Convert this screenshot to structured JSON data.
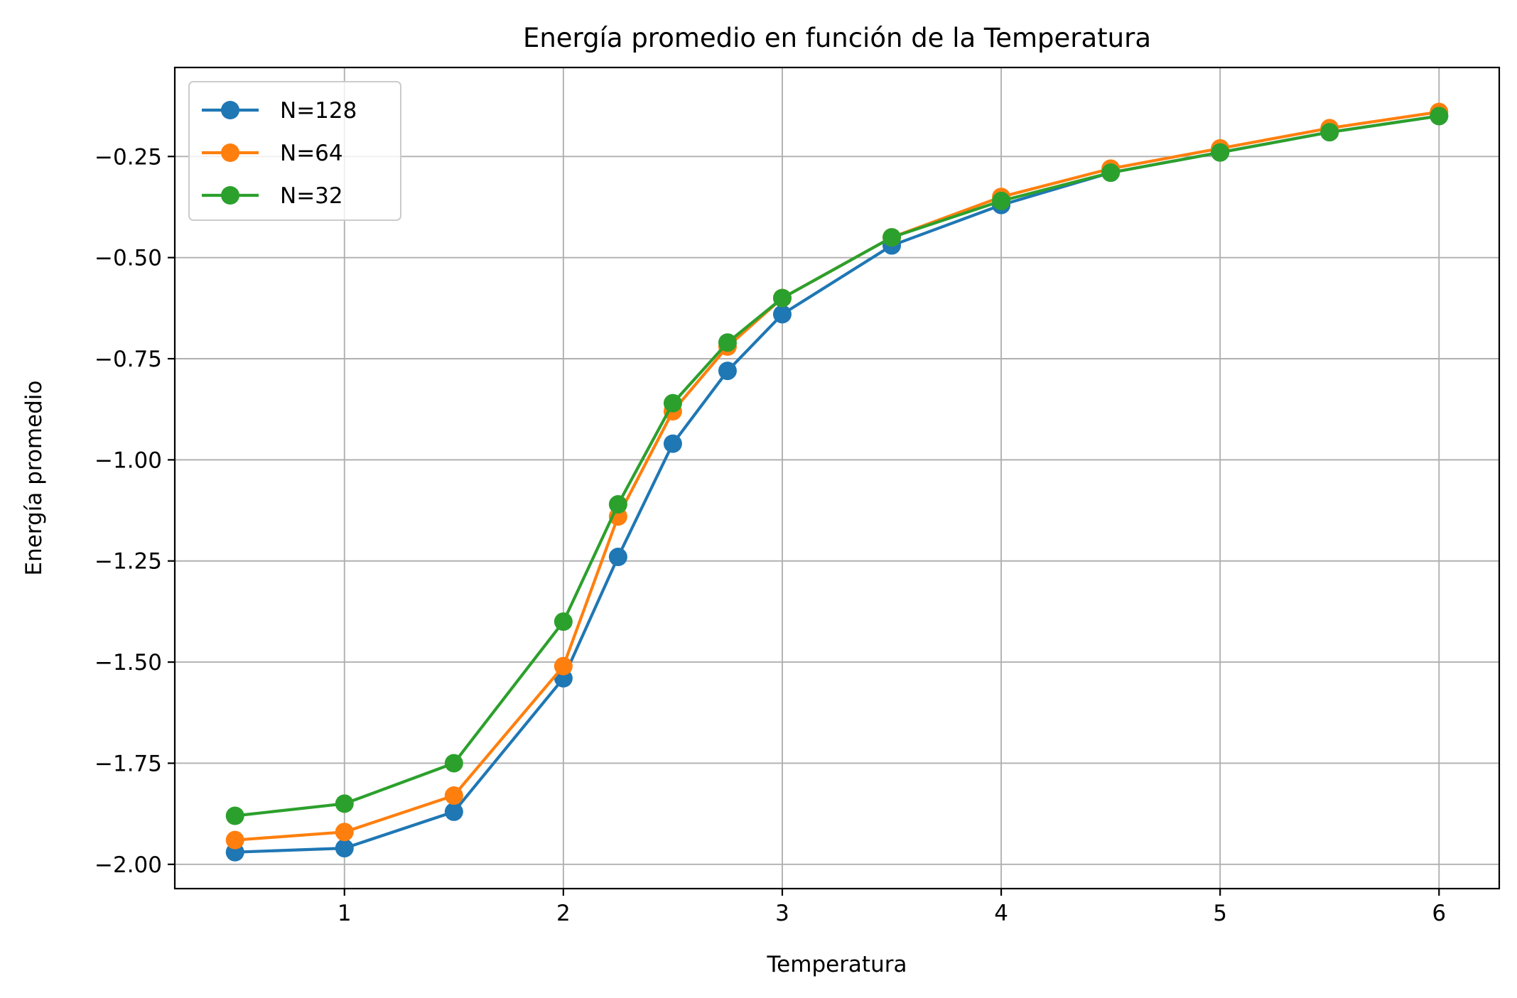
{
  "chart_data": {
    "type": "line",
    "title": "Energía promedio en función de la Temperatura",
    "xlabel": "Temperatura",
    "ylabel": "Energía promedio",
    "xlim": [
      0.225,
      6.275
    ],
    "ylim": [
      -2.06,
      -0.03
    ],
    "x_ticks": [
      1,
      2,
      3,
      4,
      5,
      6
    ],
    "x_tick_labels": [
      "1",
      "2",
      "3",
      "4",
      "5",
      "6"
    ],
    "y_ticks": [
      -2.0,
      -1.75,
      -1.5,
      -1.25,
      -1.0,
      -0.75,
      -0.5,
      -0.25
    ],
    "y_tick_labels": [
      "−2.00",
      "−1.75",
      "−1.50",
      "−1.25",
      "−1.00",
      "−0.75",
      "−0.50",
      "−0.25"
    ],
    "grid": true,
    "legend_position": "top-left",
    "markers": "circle",
    "x": [
      0.5,
      1.0,
      1.5,
      2.0,
      2.25,
      2.5,
      2.75,
      3.0,
      3.5,
      4.0,
      4.5,
      5.0,
      5.5,
      6.0
    ],
    "series": [
      {
        "name": "N=128",
        "color": "#1f77b4",
        "values": [
          -1.97,
          -1.96,
          -1.87,
          -1.54,
          -1.24,
          -0.96,
          -0.78,
          -0.64,
          -0.47,
          -0.37,
          -0.29,
          -0.24,
          -0.19,
          -0.15
        ]
      },
      {
        "name": "N=64",
        "color": "#ff7f0e",
        "values": [
          -1.94,
          -1.92,
          -1.83,
          -1.51,
          -1.14,
          -0.88,
          -0.72,
          -0.6,
          -0.45,
          -0.35,
          -0.28,
          -0.23,
          -0.18,
          -0.14
        ]
      },
      {
        "name": "N=32",
        "color": "#2ca02c",
        "values": [
          -1.88,
          -1.85,
          -1.75,
          -1.4,
          -1.11,
          -0.86,
          -0.71,
          -0.6,
          -0.45,
          -0.36,
          -0.29,
          -0.24,
          -0.19,
          -0.15
        ]
      }
    ]
  }
}
